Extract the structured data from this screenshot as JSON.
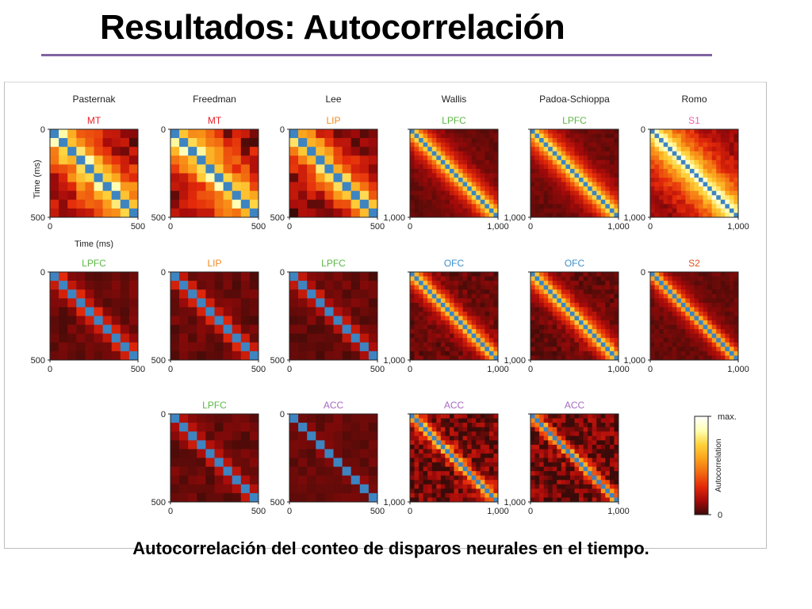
{
  "slide": {
    "title": "Resultados: Autocorrelación",
    "caption": "Autocorrelación del conteo de disparos neurales en el tiempo."
  },
  "chart_data": {
    "type": "heatmap",
    "value": "Autocorrelation",
    "colorscale": {
      "label": "Autocorrelation",
      "max_label": "max.",
      "min_label": "0",
      "colors": [
        "#3a0b08",
        "#a50a0a",
        "#e42a0a",
        "#f26a10",
        "#fba31c",
        "#ffd23c",
        "#ffffb4",
        "#ffffff"
      ]
    },
    "diagonal_color": "#3d84c1",
    "axis_labels": {
      "x": "Time (ms)",
      "y": "Time (ms)"
    },
    "columns": [
      "Pasternak",
      "Freedman",
      "Lee",
      "Wallis",
      "Padoa-Schioppa",
      "Romo"
    ],
    "label_colors": {
      "MT": "#e8202a",
      "LIP": "#f28a1e",
      "LPFC": "#5cb845",
      "OFC": "#3a8fd0",
      "S1": "#ee5fa8",
      "S2": "#e2501d",
      "ACC": "#a669c2"
    },
    "panels": [
      {
        "row": 0,
        "col": 0,
        "label": "MT",
        "range": [
          0,
          500
        ],
        "x_ticks": [
          "0",
          "500"
        ],
        "y_ticks": [
          "0",
          "500"
        ],
        "bins": 10,
        "decay": 0.3,
        "noise": 0.28
      },
      {
        "row": 0,
        "col": 1,
        "label": "MT",
        "range": [
          0,
          500
        ],
        "x_ticks": [
          "0",
          "500"
        ],
        "y_ticks": [
          "0",
          "500"
        ],
        "bins": 10,
        "decay": 0.3,
        "noise": 0.28
      },
      {
        "row": 0,
        "col": 2,
        "label": "LIP",
        "range": [
          0,
          500
        ],
        "x_ticks": [
          "0",
          "500"
        ],
        "y_ticks": [
          "0",
          "500"
        ],
        "bins": 10,
        "decay": 0.22,
        "noise": 0.22
      },
      {
        "row": 0,
        "col": 3,
        "label": "LPFC",
        "range": [
          0,
          1000
        ],
        "x_ticks": [
          "0",
          "1,000"
        ],
        "y_ticks": [
          "",
          "1,000"
        ],
        "bins": 20,
        "decay": 0.12,
        "noise": 0.06
      },
      {
        "row": 0,
        "col": 4,
        "label": "LPFC",
        "range": [
          0,
          1000
        ],
        "x_ticks": [
          "0",
          "1,000"
        ],
        "y_ticks": [
          "",
          "1,000"
        ],
        "bins": 20,
        "decay": 0.13,
        "noise": 0.06
      },
      {
        "row": 0,
        "col": 5,
        "label": "S1",
        "range": [
          0,
          1000
        ],
        "x_ticks": [
          "0",
          "1,000"
        ],
        "y_ticks": [
          "0",
          "1,000"
        ],
        "bins": 20,
        "decay": 0.3,
        "noise": 0.14
      },
      {
        "row": 1,
        "col": 0,
        "label": "LPFC",
        "range": [
          0,
          500
        ],
        "x_ticks": [
          "0",
          "500"
        ],
        "y_ticks": [
          "0",
          "500"
        ],
        "bins": 10,
        "decay": 0.06,
        "noise": 0.08
      },
      {
        "row": 1,
        "col": 1,
        "label": "LIP",
        "range": [
          0,
          500
        ],
        "x_ticks": [
          "0",
          "500"
        ],
        "y_ticks": [
          "0",
          "500"
        ],
        "bins": 10,
        "decay": 0.06,
        "noise": 0.08
      },
      {
        "row": 1,
        "col": 2,
        "label": "LPFC",
        "range": [
          0,
          500
        ],
        "x_ticks": [
          "0",
          "500"
        ],
        "y_ticks": [
          "0",
          "500"
        ],
        "bins": 10,
        "decay": 0.05,
        "noise": 0.08
      },
      {
        "row": 1,
        "col": 3,
        "label": "OFC",
        "range": [
          0,
          1000
        ],
        "x_ticks": [
          "0",
          "1,000"
        ],
        "y_ticks": [
          "",
          "1,000"
        ],
        "bins": 20,
        "decay": 0.09,
        "noise": 0.1
      },
      {
        "row": 1,
        "col": 4,
        "label": "OFC",
        "range": [
          0,
          1000
        ],
        "x_ticks": [
          "0",
          "1,000"
        ],
        "y_ticks": [
          "",
          "1,000"
        ],
        "bins": 20,
        "decay": 0.1,
        "noise": 0.1
      },
      {
        "row": 1,
        "col": 5,
        "label": "S2",
        "range": [
          0,
          1000
        ],
        "x_ticks": [
          "0",
          "1,000"
        ],
        "y_ticks": [
          "0",
          "1,000"
        ],
        "bins": 20,
        "decay": 0.08,
        "noise": 0.06
      },
      {
        "row": 2,
        "col": 1,
        "label": "LPFC",
        "range": [
          0,
          500
        ],
        "x_ticks": [
          "0",
          "500"
        ],
        "y_ticks": [
          "0",
          "500"
        ],
        "bins": 10,
        "decay": 0.05,
        "noise": 0.08
      },
      {
        "row": 2,
        "col": 2,
        "label": "ACC",
        "range": [
          0,
          500
        ],
        "x_ticks": [
          "0",
          "500"
        ],
        "y_ticks": [
          "0",
          "500"
        ],
        "bins": 10,
        "decay": 0.03,
        "noise": 0.06
      },
      {
        "row": 2,
        "col": 3,
        "label": "ACC",
        "range": [
          0,
          1000
        ],
        "x_ticks": [
          "0",
          "1,000"
        ],
        "y_ticks": [
          "",
          "1,000"
        ],
        "bins": 20,
        "decay": 0.07,
        "noise": 0.28
      },
      {
        "row": 2,
        "col": 4,
        "label": "ACC",
        "range": [
          0,
          1000
        ],
        "x_ticks": [
          "0",
          "1,000"
        ],
        "y_ticks": [
          "",
          "1,000"
        ],
        "bins": 20,
        "decay": 0.06,
        "noise": 0.28
      }
    ]
  }
}
